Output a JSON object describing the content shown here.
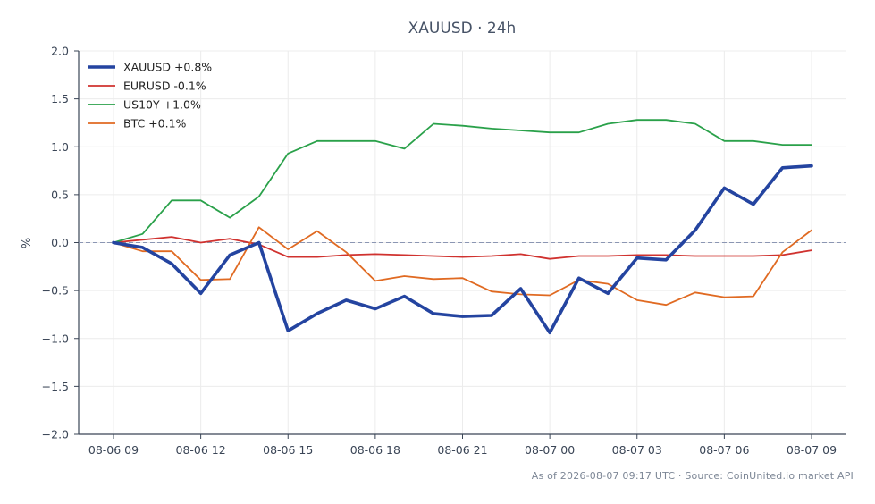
{
  "chart_data": {
    "type": "line",
    "title": "XAUUSD · 24h",
    "xlabel": "",
    "ylabel": "%",
    "ylim": [
      -2.0,
      2.0
    ],
    "yticks": [
      "2.0",
      "1.5",
      "1.0",
      "0.5",
      "0.0",
      "−0.5",
      "−1.0",
      "−1.5",
      "−2.0"
    ],
    "ytick_values": [
      2.0,
      1.5,
      1.0,
      0.5,
      0.0,
      -0.5,
      -1.0,
      -1.5,
      -2.0
    ],
    "xticks": [
      "08-06 09",
      "08-06 12",
      "08-06 15",
      "08-06 18",
      "08-06 21",
      "08-07 00",
      "08-07 03",
      "08-07 06",
      "08-07 09"
    ],
    "x": [
      "08-06 09:00",
      "08-06 10:00",
      "08-06 11:00",
      "08-06 12:00",
      "08-06 13:00",
      "08-06 14:00",
      "08-06 15:00",
      "08-06 16:00",
      "08-06 17:00",
      "08-06 18:00",
      "08-06 19:00",
      "08-06 20:00",
      "08-06 21:00",
      "08-06 22:00",
      "08-06 23:00",
      "08-07 00:00",
      "08-07 01:00",
      "08-07 02:00",
      "08-07 03:00",
      "08-07 04:00",
      "08-07 05:00",
      "08-07 06:00",
      "08-07 07:00",
      "08-07 08:00",
      "08-07 09:00"
    ],
    "grid": true,
    "reference_line": 0.0,
    "legend_position": "top-left",
    "series": [
      {
        "name": "XAUUSD +0.8%",
        "color": "#2444a0",
        "values": [
          0.0,
          -0.05,
          -0.22,
          -0.53,
          -0.13,
          0.0,
          -0.92,
          -0.74,
          -0.6,
          -0.69,
          -0.56,
          -0.74,
          -0.77,
          -0.76,
          -0.48,
          -0.94,
          -0.37,
          -0.53,
          -0.16,
          -0.18,
          0.13,
          0.57,
          0.4,
          0.78,
          0.8
        ]
      },
      {
        "name": "EURUSD -0.1%",
        "color": "#d0322f",
        "values": [
          0.0,
          0.03,
          0.06,
          0.0,
          0.04,
          -0.02,
          -0.15,
          -0.15,
          -0.13,
          -0.12,
          -0.13,
          -0.14,
          -0.15,
          -0.14,
          -0.12,
          -0.17,
          -0.14,
          -0.14,
          -0.13,
          -0.13,
          -0.14,
          -0.14,
          -0.14,
          -0.13,
          -0.08
        ]
      },
      {
        "name": "US10Y +1.0%",
        "color": "#2aa14a",
        "values": [
          0.0,
          0.09,
          0.44,
          0.44,
          0.26,
          0.48,
          0.93,
          1.06,
          1.06,
          1.06,
          0.98,
          1.24,
          1.22,
          1.19,
          1.17,
          1.15,
          1.15,
          1.24,
          1.28,
          1.28,
          1.24,
          1.06,
          1.06,
          1.02,
          1.02
        ]
      },
      {
        "name": "BTC +0.1%",
        "color": "#e06a22",
        "values": [
          0.0,
          -0.09,
          -0.09,
          -0.39,
          -0.38,
          0.16,
          -0.07,
          0.12,
          -0.1,
          -0.4,
          -0.35,
          -0.38,
          -0.37,
          -0.51,
          -0.54,
          -0.55,
          -0.39,
          -0.43,
          -0.6,
          -0.65,
          -0.52,
          -0.57,
          -0.56,
          -0.1,
          0.13
        ]
      }
    ]
  },
  "footer": "As of 2026-08-07 09:17 UTC · Source: CoinUnited.io market API"
}
